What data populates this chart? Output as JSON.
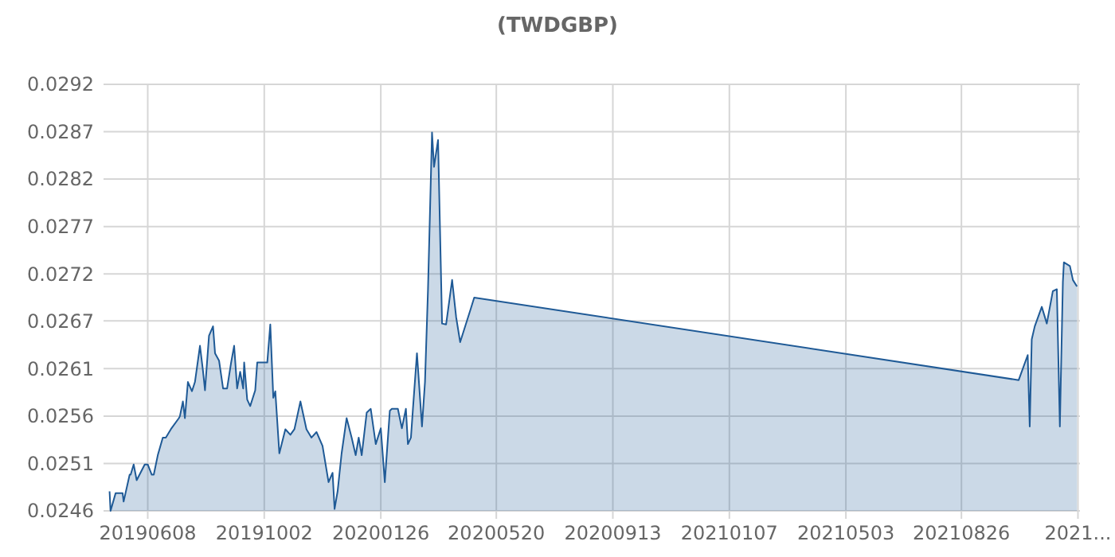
{
  "chart_data": {
    "type": "area",
    "title": "(TWDGBP)",
    "x": [
      "2019-05-01",
      "2019-05-02",
      "2019-05-07",
      "2019-05-14",
      "2019-05-15",
      "2019-05-21",
      "2019-05-22",
      "2019-05-25",
      "2019-05-28",
      "2019-06-05",
      "2019-06-08",
      "2019-06-12",
      "2019-06-14",
      "2019-06-18",
      "2019-06-23",
      "2019-06-26",
      "2019-07-01",
      "2019-07-09",
      "2019-07-10",
      "2019-07-13",
      "2019-07-15",
      "2019-07-18",
      "2019-07-22",
      "2019-07-25",
      "2019-07-30",
      "2019-08-02",
      "2019-08-04",
      "2019-08-08",
      "2019-08-12",
      "2019-08-14",
      "2019-08-18",
      "2019-08-22",
      "2019-08-26",
      "2019-08-30",
      "2019-09-02",
      "2019-09-05",
      "2019-09-08",
      "2019-09-11",
      "2019-09-12",
      "2019-09-15",
      "2019-09-18",
      "2019-09-23",
      "2019-09-25",
      "2019-10-05",
      "2019-10-08",
      "2019-10-11",
      "2019-10-13",
      "2019-10-17",
      "2019-10-23",
      "2019-10-28",
      "2019-11-01",
      "2019-11-07",
      "2019-11-13",
      "2019-11-18",
      "2019-11-23",
      "2019-11-29",
      "2019-12-05",
      "2019-12-09",
      "2019-12-11",
      "2019-12-14",
      "2019-12-18",
      "2019-12-23",
      "2019-12-28",
      "2020-01-01",
      "2020-01-04",
      "2020-01-07",
      "2020-01-12",
      "2020-01-16",
      "2020-01-21",
      "2020-01-26",
      "2020-01-30",
      "2020-02-04",
      "2020-02-06",
      "2020-02-12",
      "2020-02-16",
      "2020-02-20",
      "2020-02-22",
      "2020-02-25",
      "2020-02-27",
      "2020-03-02",
      "2020-03-07",
      "2020-03-10",
      "2020-03-13",
      "2020-03-17",
      "2020-03-19",
      "2020-03-23",
      "2020-03-27",
      "2020-03-31",
      "2020-04-06",
      "2020-04-10",
      "2020-04-14",
      "2020-04-24",
      "2020-04-28",
      "2021-10-22",
      "2021-10-31",
      "2021-11-02",
      "2021-11-04",
      "2021-11-07",
      "2021-11-14",
      "2021-11-19",
      "2021-11-25",
      "2021-11-29",
      "2021-12-02",
      "2021-12-05",
      "2021-12-06",
      "2021-12-12",
      "2021-12-15",
      "2021-12-19"
    ],
    "series": [
      {
        "color": "#1f5a96",
        "values": [
          0.02481,
          0.0246,
          0.02479,
          0.02479,
          0.0247,
          0.02499,
          0.02499,
          0.0251,
          0.02493,
          0.0251,
          0.0251,
          0.02499,
          0.02499,
          0.0252,
          0.02539,
          0.02539,
          0.02548,
          0.0256,
          0.02562,
          0.02578,
          0.0256,
          0.02599,
          0.02589,
          0.02599,
          0.02638,
          0.02611,
          0.0259,
          0.02649,
          0.02659,
          0.0263,
          0.02622,
          0.02592,
          0.02592,
          0.0262,
          0.02638,
          0.02592,
          0.0261,
          0.02592,
          0.0262,
          0.0258,
          0.02573,
          0.0259,
          0.0262,
          0.0262,
          0.02661,
          0.02582,
          0.02589,
          0.02522,
          0.02548,
          0.02542,
          0.02548,
          0.02578,
          0.02548,
          0.02539,
          0.02545,
          0.0253,
          0.02491,
          0.02501,
          0.02462,
          0.02481,
          0.02522,
          0.0256,
          0.02539,
          0.0252,
          0.02539,
          0.0252,
          0.02566,
          0.0257,
          0.02532,
          0.02549,
          0.02491,
          0.02568,
          0.0257,
          0.0257,
          0.02549,
          0.0257,
          0.02532,
          0.02539,
          0.0257,
          0.0263,
          0.02551,
          0.02599,
          0.02699,
          0.02868,
          0.02831,
          0.0286,
          0.02662,
          0.02661,
          0.02709,
          0.02669,
          0.02642,
          0.02676,
          0.0269,
          0.02601,
          0.02628,
          0.02551,
          0.02645,
          0.02659,
          0.0268,
          0.02662,
          0.02697,
          0.02699,
          0.02551,
          0.02707,
          0.02728,
          0.02724,
          0.02709,
          0.02702
        ]
      }
    ],
    "xlim": [
      "2019-04-25",
      "2021-12-22"
    ],
    "xticks": [
      {
        "value": "2019-06-08",
        "label": "20190608"
      },
      {
        "value": "2019-10-02",
        "label": "20191002"
      },
      {
        "value": "2020-01-26",
        "label": "20200126"
      },
      {
        "value": "2020-05-20",
        "label": "20200520"
      },
      {
        "value": "2020-09-13",
        "label": "20200913"
      },
      {
        "value": "2021-01-07",
        "label": "20210107"
      },
      {
        "value": "2021-05-03",
        "label": "20210503"
      },
      {
        "value": "2021-08-26",
        "label": "20210826"
      },
      {
        "value": "2021-12-20",
        "label": "2021..."
      }
    ],
    "ylim": [
      0.0246,
      0.0292
    ],
    "yticks": [
      0.0246,
      {
        "value": 0.025111,
        "label": "0.0251"
      },
      {
        "value": 0.025622,
        "label": "0.0256"
      },
      {
        "value": 0.026133,
        "label": "0.0261"
      },
      {
        "value": 0.02665,
        "label": "0.0267"
      },
      {
        "value": 0.027156,
        "label": "0.0272"
      },
      {
        "value": 0.027667,
        "label": "0.0277"
      },
      {
        "value": 0.028178,
        "label": "0.0282"
      },
      {
        "value": 0.028689,
        "label": "0.0287"
      },
      0.0292
    ],
    "grid": true,
    "marker": "none",
    "line_style": "solid"
  }
}
